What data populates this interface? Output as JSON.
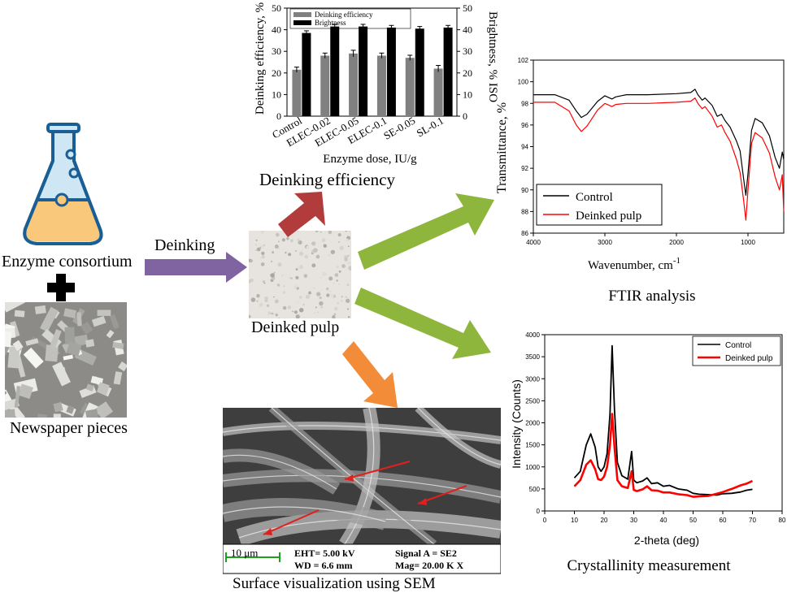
{
  "labels": {
    "enzyme": "Enzyme consortium",
    "newspaper": "Newspaper pieces",
    "deinking": "Deinking",
    "deinked_pulp": "Deinked pulp",
    "deinking_efficiency": "Deinking  efficiency",
    "ftir": "FTIR analysis",
    "crystallinity": "Crystallinity measurement",
    "sem": "Surface visualization using SEM"
  },
  "sem_info": {
    "scale": "10 μm",
    "eht": "EHT= 5.00 kV",
    "wd": "WD = 6.6 mm",
    "signal": "Signal A = SE2",
    "mag": "Mag= 20.00 K X"
  },
  "colors": {
    "deinking_arrow": "#8064a2",
    "green_arrow": "#8fb63c",
    "red_arrow": "#b23b3b",
    "orange_arrow": "#f28c38",
    "flask_liquid": "#f9c87b",
    "flask_body": "#cfe6f5",
    "flask_outline": "#1a5e96"
  },
  "chart_data": [
    {
      "type": "bar",
      "categories": [
        "Control",
        "ELEC-0.02",
        "ELEC-0.05",
        "ELEC-0.1",
        "SE-0.05",
        "SL-0.1"
      ],
      "series": [
        {
          "name": "Deinking efficiency",
          "values": [
            21.5,
            28,
            29,
            28,
            27,
            22
          ],
          "errors": [
            1.2,
            1.2,
            1.5,
            1.2,
            1.2,
            1.5
          ],
          "color": "#808080"
        },
        {
          "name": "Brightness",
          "values": [
            38.5,
            41.5,
            41.5,
            41,
            40.5,
            41
          ],
          "errors": [
            1,
            1,
            1,
            1,
            1,
            1
          ],
          "color": "#000000"
        }
      ],
      "xlabel": "Enzyme dose, IU/g",
      "ylabel": "Deinking efficiency, %",
      "ylabel_right": "Brightness, % ISO",
      "ylim": [
        0,
        50
      ],
      "yticks": [
        0,
        10,
        20,
        30,
        40,
        50
      ],
      "legend": "top"
    },
    {
      "type": "line",
      "xlabel": "Wavenumber, cm",
      "xlabel_sup": "-1",
      "ylabel": "Transmittance, %",
      "xlim": [
        4000,
        500
      ],
      "xticks": [
        4000,
        3000,
        2000,
        1000
      ],
      "ylim": [
        86,
        102
      ],
      "yticks": [
        86,
        88,
        90,
        92,
        94,
        96,
        98,
        100,
        102
      ],
      "legend": "bottom-left",
      "series": [
        {
          "name": "Control",
          "color": "#000000",
          "x": [
            4000,
            3700,
            3500,
            3400,
            3330,
            3250,
            3100,
            3000,
            2900,
            2850,
            2700,
            2400,
            2000,
            1800,
            1740,
            1700,
            1640,
            1600,
            1500,
            1430,
            1370,
            1320,
            1250,
            1160,
            1110,
            1060,
            1030,
            1000,
            950,
            900,
            800,
            700,
            620,
            560,
            520,
            500
          ],
          "y": [
            98.8,
            98.8,
            98.3,
            97.3,
            96.7,
            97.0,
            98.2,
            98.7,
            98.4,
            98.6,
            98.8,
            98.8,
            98.9,
            99.0,
            99.3,
            98.8,
            98.3,
            98.5,
            97.8,
            96.8,
            97.0,
            96.4,
            95.8,
            94.5,
            93.6,
            91.0,
            89.5,
            91.5,
            95.5,
            96.6,
            96.2,
            95.0,
            93.0,
            92.0,
            93.5,
            92.8
          ]
        },
        {
          "name": "Deinked pulp",
          "color": "#ff0000",
          "x": [
            4000,
            3700,
            3500,
            3400,
            3330,
            3250,
            3100,
            3000,
            2900,
            2850,
            2700,
            2400,
            2000,
            1800,
            1740,
            1700,
            1640,
            1600,
            1500,
            1430,
            1370,
            1320,
            1250,
            1160,
            1110,
            1060,
            1030,
            1000,
            950,
            900,
            800,
            700,
            620,
            560,
            520,
            500
          ],
          "y": [
            98.1,
            98.1,
            97.3,
            96.0,
            95.4,
            95.9,
            97.4,
            98.0,
            97.7,
            97.9,
            98.0,
            98.0,
            98.1,
            98.2,
            98.5,
            98.0,
            97.5,
            97.7,
            96.8,
            95.8,
            96.0,
            95.3,
            94.5,
            92.8,
            91.6,
            89.0,
            87.2,
            90.0,
            94.3,
            95.3,
            94.8,
            93.4,
            91.2,
            90.0,
            91.4,
            88.0
          ]
        }
      ]
    },
    {
      "type": "line",
      "xlabel": "2-theta (deg)",
      "ylabel": "Intensity (Counts)",
      "xlim": [
        0,
        80
      ],
      "xticks": [
        0,
        10,
        20,
        30,
        40,
        50,
        60,
        70,
        80
      ],
      "ylim": [
        0,
        4000
      ],
      "yticks": [
        0,
        500,
        1000,
        1500,
        2000,
        2500,
        3000,
        3500,
        4000
      ],
      "legend": "top-right",
      "series": [
        {
          "name": "Control",
          "color": "#000000",
          "x": [
            10,
            12,
            14,
            15.5,
            17,
            18,
            19,
            20,
            21,
            22,
            22.7,
            23.5,
            24.5,
            26,
            28,
            29.3,
            30,
            31,
            33,
            34.5,
            36,
            38,
            40,
            42,
            45,
            48,
            50,
            52,
            55,
            58,
            60,
            63,
            66,
            68,
            70
          ],
          "y": [
            750,
            900,
            1500,
            1750,
            1450,
            1000,
            900,
            1000,
            1300,
            2200,
            3750,
            2300,
            1100,
            800,
            720,
            1350,
            700,
            640,
            680,
            750,
            620,
            640,
            560,
            580,
            500,
            470,
            400,
            380,
            370,
            360,
            390,
            400,
            430,
            470,
            490
          ]
        },
        {
          "name": "Deinked pulp",
          "color": "#ff0000",
          "x": [
            10,
            12,
            14,
            15.5,
            17,
            18,
            19,
            20,
            21,
            22,
            22.7,
            23.5,
            24.5,
            26,
            28,
            29.3,
            30,
            31,
            33,
            34.5,
            36,
            38,
            40,
            42,
            45,
            48,
            50,
            52,
            55,
            58,
            60,
            63,
            66,
            68,
            70
          ],
          "y": [
            560,
            700,
            1050,
            1150,
            950,
            720,
            700,
            780,
            1000,
            1500,
            2200,
            1450,
            700,
            560,
            520,
            900,
            480,
            450,
            490,
            560,
            470,
            460,
            420,
            420,
            380,
            360,
            320,
            330,
            340,
            390,
            430,
            500,
            580,
            620,
            680
          ]
        }
      ]
    }
  ]
}
